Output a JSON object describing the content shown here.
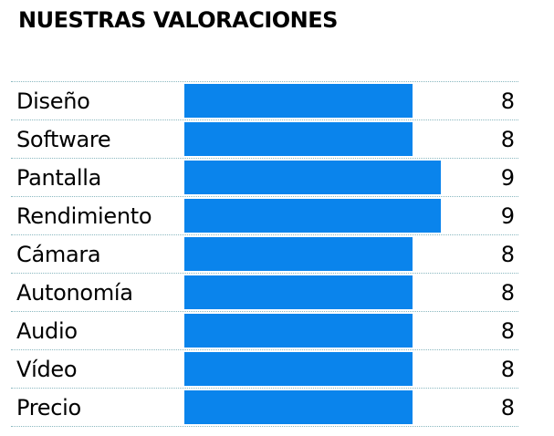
{
  "chart_data": {
    "type": "bar",
    "orientation": "horizontal",
    "title": "NUESTRAS VALORACIONES",
    "categories": [
      "Diseño",
      "Software",
      "Pantalla",
      "Rendimiento",
      "Cámara",
      "Autonomía",
      "Audio",
      "Vídeo",
      "Precio"
    ],
    "values": [
      8,
      8,
      9,
      9,
      8,
      8,
      8,
      8,
      8
    ],
    "xlim": [
      0,
      10
    ],
    "bar_color": "#0a84ec",
    "grid": "dotted row separators",
    "legend": "none"
  }
}
